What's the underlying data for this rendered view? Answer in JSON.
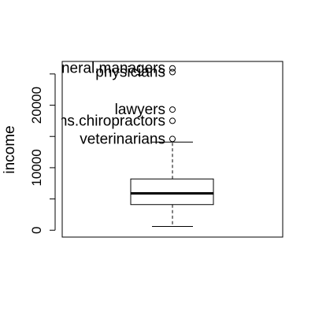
{
  "chart_data": {
    "type": "box",
    "title": "",
    "xlabel": "",
    "ylabel": "income",
    "ylim": [
      -1100,
      27000
    ],
    "yticks": [
      0,
      10000,
      20000
    ],
    "ytick_labels": [
      "0",
      "10000",
      "20000"
    ],
    "grid": false,
    "stats": {
      "min": 600,
      "q1": 4100,
      "median": 5900,
      "q3": 8200,
      "upper_whisker": 14100
    },
    "outliers": [
      {
        "label": "general.managers",
        "value": 25900
      },
      {
        "label": "physicians",
        "value": 25300
      },
      {
        "label": "lawyers",
        "value": 19300
      },
      {
        "label": "osteopaths.chiropractors",
        "value": 17500
      },
      {
        "label": "veterinarians",
        "value": 14600
      }
    ],
    "colors": {
      "box": "#000000",
      "median": "#000000",
      "background": "#ffffff"
    }
  }
}
